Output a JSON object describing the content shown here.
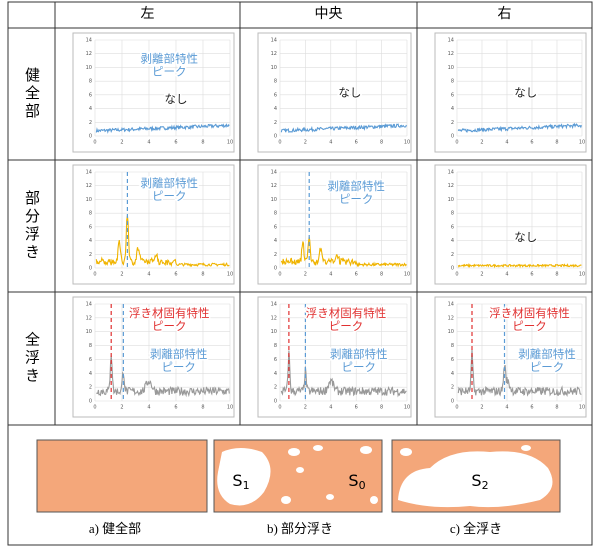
{
  "table": {
    "columns": [
      "左",
      "中央",
      "右"
    ],
    "axis": {
      "xlim": [
        0,
        10
      ],
      "xticks": [
        0,
        2,
        4,
        6,
        8,
        10
      ],
      "ylim": [
        0,
        14
      ],
      "yticks": [
        0,
        2,
        4,
        6,
        8,
        10,
        12,
        14
      ]
    },
    "rows": [
      {
        "label": "健全部",
        "trace_color": "#5b9bd5",
        "cells": [
          {
            "annotations": [
              {
                "lines": [
                  "剥離部特性",
                  "ピーク"
                ],
                "color": "#5b9bd5"
              },
              {
                "lines": [
                  "なし"
                ],
                "color": "#222222"
              }
            ],
            "peaks": []
          },
          {
            "annotations": [
              {
                "lines": [
                  "なし"
                ],
                "color": "#222222"
              }
            ],
            "peaks": []
          },
          {
            "annotations": [
              {
                "lines": [
                  "なし"
                ],
                "color": "#222222"
              }
            ],
            "peaks": []
          }
        ]
      },
      {
        "label": "部分浮き",
        "trace_color": "#f0b400",
        "cells": [
          {
            "annotations": [
              {
                "lines": [
                  "剥離部特性",
                  "ピーク"
                ],
                "color": "#5b9bd5"
              }
            ],
            "peaks": [
              {
                "x": 2.4,
                "color": "#5b9bd5"
              }
            ]
          },
          {
            "annotations": [
              {
                "lines": [
                  "剥離部特性",
                  "ピーク"
                ],
                "color": "#5b9bd5"
              }
            ],
            "peaks": [
              {
                "x": 2.3,
                "color": "#5b9bd5"
              }
            ]
          },
          {
            "annotations": [
              {
                "lines": [
                  "なし"
                ],
                "color": "#222222"
              }
            ],
            "peaks": []
          }
        ]
      },
      {
        "label": "全浮き",
        "trace_color": "#999999",
        "cells": [
          {
            "annotations": [
              {
                "lines": [
                  "浮き材固有特性",
                  "ピーク"
                ],
                "color": "#e03030"
              },
              {
                "lines": [
                  "剥離部特性",
                  "ピーク"
                ],
                "color": "#5b9bd5"
              }
            ],
            "peaks": [
              {
                "x": 1.2,
                "color": "#e03030"
              },
              {
                "x": 2.1,
                "color": "#5b9bd5"
              }
            ]
          },
          {
            "annotations": [
              {
                "lines": [
                  "浮き材固有特性",
                  "ピーク"
                ],
                "color": "#e03030"
              },
              {
                "lines": [
                  "剥離部特性",
                  "ピーク"
                ],
                "color": "#5b9bd5"
              }
            ],
            "peaks": [
              {
                "x": 0.7,
                "color": "#e03030"
              },
              {
                "x": 2.0,
                "color": "#5b9bd5"
              }
            ]
          },
          {
            "annotations": [
              {
                "lines": [
                  "浮き材固有特性",
                  "ピーク"
                ],
                "color": "#e03030"
              },
              {
                "lines": [
                  "剥離部特性",
                  "ピーク"
                ],
                "color": "#5b9bd5"
              }
            ],
            "peaks": [
              {
                "x": 1.2,
                "color": "#e03030"
              },
              {
                "x": 3.8,
                "color": "#5b9bd5"
              }
            ]
          }
        ]
      }
    ]
  },
  "figures": [
    {
      "caption": "a)  健全部",
      "labels": []
    },
    {
      "caption": "b)  部分浮き",
      "labels": [
        {
          "main": "S",
          "sub": "1"
        },
        {
          "main": "S",
          "sub": "0"
        }
      ]
    },
    {
      "caption": "c)  全浮き",
      "labels": [
        {
          "main": "S",
          "sub": "2"
        }
      ]
    }
  ]
}
